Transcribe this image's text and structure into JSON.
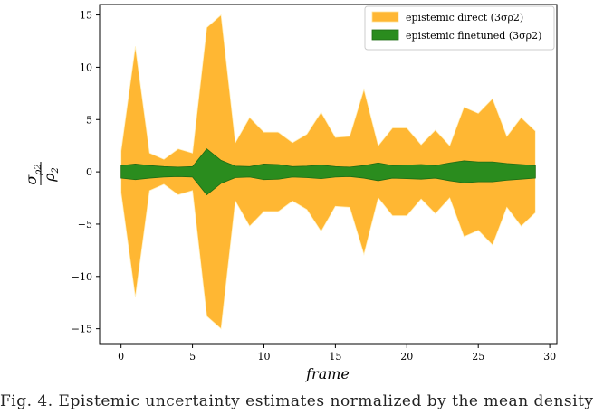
{
  "chart_data": {
    "type": "area",
    "title": "",
    "xlabel": "frame",
    "ylabel": "σρ2/ρ2",
    "xlim": [
      -1.5,
      30.5
    ],
    "ylim": [
      -16.5,
      16
    ],
    "xticks": [
      0,
      5,
      10,
      15,
      20,
      25,
      30
    ],
    "yticks": [
      -15,
      -10,
      -5,
      0,
      5,
      10,
      15
    ],
    "tick_labels_x": [
      "0",
      "5",
      "10",
      "15",
      "20",
      "25",
      "30"
    ],
    "tick_labels_y": [
      "−15",
      "−10",
      "−5",
      "0",
      "5",
      "10",
      "15"
    ],
    "grid": false,
    "legend_position": "top-right",
    "x": [
      0,
      1,
      2,
      3,
      4,
      5,
      6,
      7,
      8,
      9,
      10,
      11,
      12,
      13,
      14,
      15,
      16,
      17,
      18,
      19,
      20,
      21,
      22,
      23,
      24,
      25,
      26,
      27,
      28,
      29
    ],
    "series": [
      {
        "name": "epistemic direct (3σρ2)",
        "color": "#ffb733",
        "upper": [
          2.0,
          12.0,
          1.8,
          1.2,
          2.2,
          1.8,
          13.8,
          15.0,
          2.8,
          5.2,
          3.8,
          3.8,
          2.8,
          3.6,
          5.7,
          3.3,
          3.4,
          7.9,
          2.5,
          4.2,
          4.2,
          2.6,
          4.0,
          2.5,
          6.2,
          5.6,
          7.0,
          3.4,
          5.2,
          3.9
        ],
        "lower": [
          -2.0,
          -12.0,
          -1.8,
          -1.2,
          -2.2,
          -1.8,
          -13.8,
          -15.0,
          -2.8,
          -5.2,
          -3.8,
          -3.8,
          -2.8,
          -3.6,
          -5.7,
          -3.3,
          -3.4,
          -7.9,
          -2.5,
          -4.2,
          -4.2,
          -2.6,
          -4.0,
          -2.5,
          -6.2,
          -5.6,
          -7.0,
          -3.4,
          -5.2,
          -3.9
        ]
      },
      {
        "name": "epistemic finetuned (3σρ2)",
        "color": "#2a8c1e",
        "upper": [
          0.6,
          0.75,
          0.6,
          0.5,
          0.45,
          0.5,
          2.2,
          1.1,
          0.55,
          0.5,
          0.75,
          0.7,
          0.5,
          0.55,
          0.65,
          0.5,
          0.45,
          0.6,
          0.85,
          0.6,
          0.65,
          0.7,
          0.6,
          0.85,
          1.05,
          0.95,
          0.95,
          0.8,
          0.7,
          0.6
        ],
        "lower": [
          -0.6,
          -0.75,
          -0.6,
          -0.5,
          -0.45,
          -0.5,
          -2.2,
          -1.1,
          -0.55,
          -0.5,
          -0.75,
          -0.7,
          -0.5,
          -0.55,
          -0.65,
          -0.5,
          -0.45,
          -0.6,
          -0.85,
          -0.6,
          -0.65,
          -0.7,
          -0.6,
          -0.85,
          -1.05,
          -0.95,
          -0.95,
          -0.8,
          -0.7,
          -0.6
        ]
      }
    ]
  },
  "caption": {
    "text": "Fig. 4. Epistemic uncertainty estimates normalized by the mean density"
  }
}
